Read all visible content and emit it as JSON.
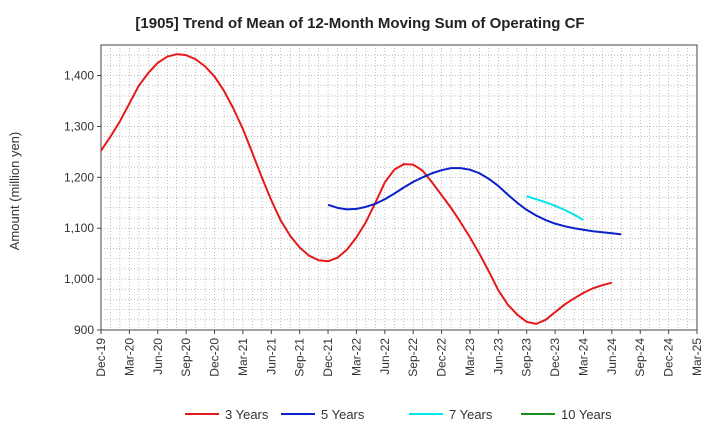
{
  "chart_data": {
    "type": "line",
    "title": "[1905]  Trend of Mean of 12-Month Moving Sum of Operating CF",
    "xlabel": "",
    "ylabel": "Amount (million yen)",
    "ylim": [
      900,
      1460
    ],
    "yticks": [
      900,
      1000,
      1100,
      1200,
      1300,
      1400
    ],
    "ytick_labels": [
      "900",
      "1,000",
      "1,100",
      "1,200",
      "1,300",
      "1,400"
    ],
    "x_tick_labels": [
      "Dec-19",
      "Mar-20",
      "Jun-20",
      "Sep-20",
      "Dec-20",
      "Mar-21",
      "Jun-21",
      "Sep-21",
      "Dec-21",
      "Mar-22",
      "Jun-22",
      "Sep-22",
      "Dec-22",
      "Mar-23",
      "Jun-23",
      "Sep-23",
      "Dec-23",
      "Mar-24",
      "Jun-24",
      "Sep-24",
      "Dec-24",
      "Mar-25"
    ],
    "x_start": "Dec-19",
    "months_total": 63,
    "grid": true,
    "legend_position": "bottom",
    "series": [
      {
        "name": "3 Years",
        "color": "#e41a1c",
        "start_month_index": 0,
        "values": [
          1252,
          1280,
          1310,
          1345,
          1380,
          1405,
          1425,
          1437,
          1442,
          1440,
          1432,
          1418,
          1398,
          1370,
          1335,
          1295,
          1248,
          1200,
          1155,
          1115,
          1085,
          1062,
          1046,
          1037,
          1035,
          1042,
          1058,
          1082,
          1112,
          1150,
          1190,
          1215,
          1226,
          1225,
          1213,
          1190,
          1165,
          1140,
          1112,
          1082,
          1050,
          1015,
          978,
          950,
          930,
          916,
          912,
          920,
          935,
          950,
          962,
          973,
          982,
          988,
          993
        ]
      },
      {
        "name": "5 Years",
        "color": "#0a22c8",
        "start_month_index": 24,
        "values": [
          1146,
          1140,
          1137,
          1138,
          1142,
          1148,
          1157,
          1168,
          1180,
          1191,
          1200,
          1208,
          1214,
          1218,
          1218,
          1215,
          1208,
          1197,
          1183,
          1166,
          1150,
          1136,
          1125,
          1116,
          1109,
          1104,
          1100,
          1097,
          1094,
          1092,
          1090,
          1088
        ]
      },
      {
        "name": "7 Years",
        "color": "#00e5ee",
        "start_month_index": 45,
        "values": [
          1163,
          1157,
          1151,
          1144,
          1136,
          1127,
          1116
        ]
      },
      {
        "name": "10 Years",
        "color": "#1a8c1a",
        "start_month_index": 0,
        "values": []
      }
    ]
  }
}
